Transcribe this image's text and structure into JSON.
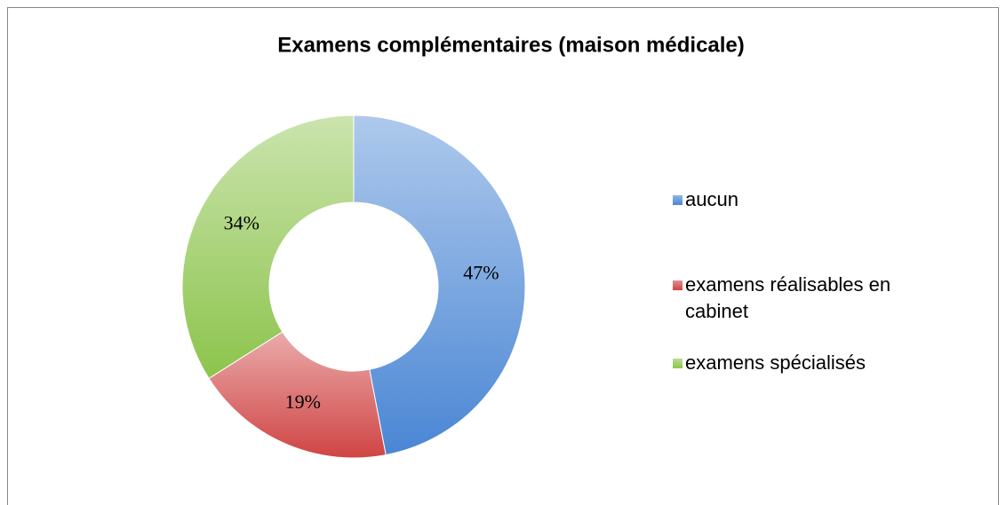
{
  "chart_data": {
    "type": "donut",
    "title": "Examens complémentaires (maison médicale)",
    "categories": [
      "aucun",
      "examens réalisables en cabinet",
      "examens spécialisés"
    ],
    "values": [
      47,
      19,
      34
    ],
    "value_labels": [
      "47%",
      "19%",
      "34%"
    ],
    "colors": [
      "#4a86d4",
      "#d04444",
      "#8cc44c"
    ],
    "legend": "right"
  }
}
